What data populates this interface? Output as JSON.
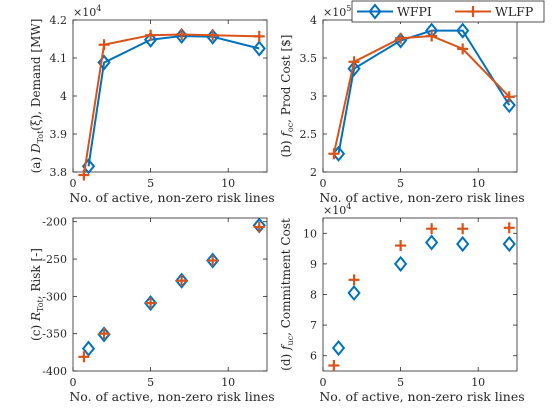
{
  "colors": {
    "wfpi": "#0072BD",
    "wlfp": "#D95319",
    "axis": "#262626"
  },
  "legend": {
    "placement": "top-right",
    "entries": [
      "WFPI",
      "WLFP"
    ]
  },
  "chart_data": [
    {
      "id": "a",
      "type": "line",
      "xlabel": "No. of active, non-zero risk lines",
      "ylabel": "(a) D_Tot(ξ), Demand [MW]",
      "ylabel_parts": {
        "prefix": "(a) ",
        "sym": "D",
        "sub": "Tot",
        "rest": "(ξ), Demand [MW]"
      },
      "exponent": {
        "base": "×10",
        "power": "4"
      },
      "xlim": [
        0,
        12.5
      ],
      "ylim": [
        38000,
        42000
      ],
      "xticks": [
        0,
        5,
        10
      ],
      "yticks": [
        38000,
        39000,
        40000,
        41000,
        42000
      ],
      "ytick_labels": [
        "3.8",
        "3.9",
        "4",
        "4.1",
        "4.2"
      ],
      "grid": false,
      "series": [
        {
          "name": "WFPI",
          "x": [
            1,
            2,
            5,
            7,
            9,
            12
          ],
          "y": [
            38150,
            40880,
            41480,
            41580,
            41560,
            41250
          ]
        },
        {
          "name": "WLFP",
          "x": [
            0.7,
            2,
            5,
            7,
            9,
            12
          ],
          "y": [
            37920,
            41350,
            41600,
            41620,
            41600,
            41570
          ]
        }
      ]
    },
    {
      "id": "b",
      "type": "line",
      "xlabel": "No. of active, non-zero risk lines",
      "ylabel": "(b) f_oc, Prod Cost [$]",
      "ylabel_parts": {
        "prefix": "(b) ",
        "sym": "f",
        "sub": "oc",
        "rest": ", Prod Cost [$]"
      },
      "exponent": {
        "base": "×10",
        "power": "5"
      },
      "xlim": [
        0,
        12.5
      ],
      "ylim": [
        200000,
        400000
      ],
      "xticks": [
        0,
        5,
        10
      ],
      "yticks": [
        200000,
        250000,
        300000,
        350000,
        400000
      ],
      "ytick_labels": [
        "2",
        "2.5",
        "3",
        "3.5",
        "4"
      ],
      "grid": false,
      "series": [
        {
          "name": "WFPI",
          "x": [
            1,
            2,
            5,
            7,
            9,
            12
          ],
          "y": [
            224000,
            336000,
            373000,
            386000,
            386000,
            288000
          ]
        },
        {
          "name": "WLFP",
          "x": [
            0.7,
            2,
            5,
            7,
            9,
            12
          ],
          "y": [
            224000,
            345000,
            376000,
            379000,
            362000,
            299000
          ]
        }
      ]
    },
    {
      "id": "c",
      "type": "scatter",
      "xlabel": "No. of active, non-zero risk lines",
      "ylabel": "(c) R_Tot, Risk [-]",
      "ylabel_parts": {
        "prefix": "(c) ",
        "sym": "R",
        "sub": "Tot",
        "rest": ", Risk [-]"
      },
      "xlim": [
        0,
        12.5
      ],
      "ylim": [
        -400,
        -195
      ],
      "xticks": [
        0,
        5,
        10
      ],
      "yticks": [
        -400,
        -350,
        -300,
        -250,
        -200
      ],
      "ytick_labels": [
        "-400",
        "-350",
        "-300",
        "-250",
        "-200"
      ],
      "grid": false,
      "series": [
        {
          "name": "WFPI",
          "x": [
            1,
            2,
            5,
            7,
            9,
            12
          ],
          "y": [
            -370,
            -351,
            -309,
            -279,
            -252,
            -205
          ]
        },
        {
          "name": "WLFP",
          "x": [
            0.7,
            2,
            5,
            7,
            9,
            12
          ],
          "y": [
            -381,
            -350,
            -309,
            -279,
            -252,
            -207
          ]
        }
      ]
    },
    {
      "id": "d",
      "type": "scatter",
      "xlabel": "No. of active, non-zero risk lines",
      "ylabel": "(d) f_uc, Commitment Cost",
      "ylabel_parts": {
        "prefix": "(d) ",
        "sym": "f",
        "sub": "uc",
        "rest": ", Commitment Cost"
      },
      "exponent": {
        "base": "×10",
        "power": "4"
      },
      "xlim": [
        0,
        12.5
      ],
      "ylim": [
        55000,
        105000
      ],
      "xticks": [
        0,
        5,
        10
      ],
      "yticks": [
        60000,
        70000,
        80000,
        90000,
        100000
      ],
      "ytick_labels": [
        "6",
        "7",
        "8",
        "9",
        "10"
      ],
      "grid": false,
      "series": [
        {
          "name": "WFPI",
          "x": [
            1,
            2,
            5,
            7,
            9,
            12
          ],
          "y": [
            62500,
            80500,
            90000,
            97000,
            96500,
            96500
          ]
        },
        {
          "name": "WLFP",
          "x": [
            0.7,
            2,
            5,
            7,
            9,
            12
          ],
          "y": [
            56800,
            84800,
            96000,
            101500,
            101500,
            101800
          ]
        }
      ]
    }
  ]
}
